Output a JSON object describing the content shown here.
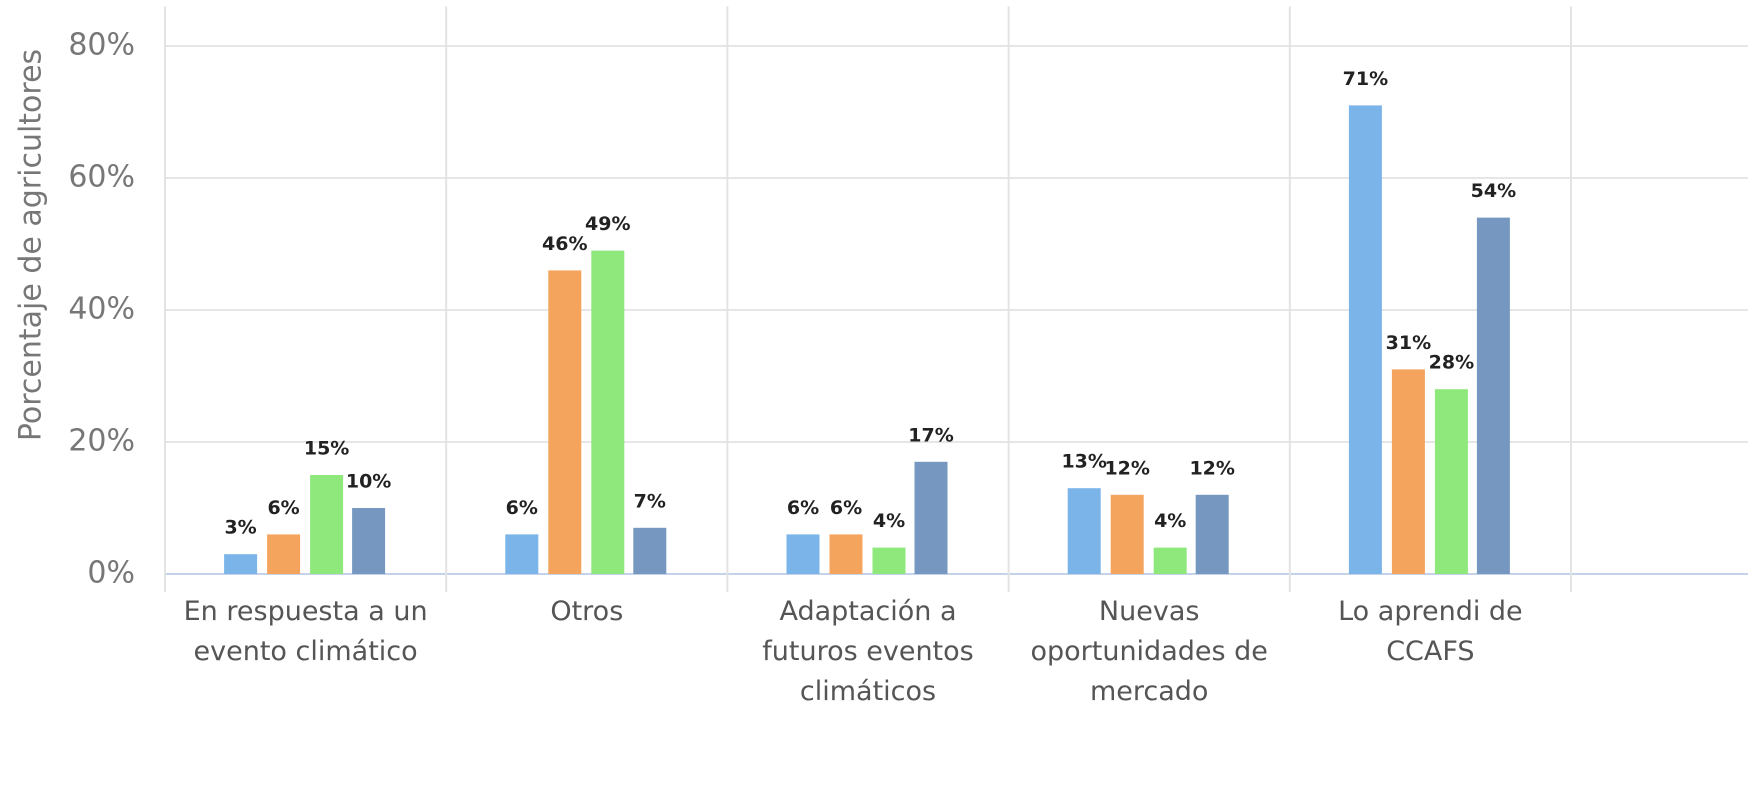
{
  "chart_data": {
    "type": "bar",
    "y_label": "Porcentaje de agricultores",
    "categories": [
      "En respuesta a un evento climático",
      "Otros",
      "Adaptación a futuros eventos climáticos",
      "Nuevas oportunidades de mercado",
      "Lo aprendi de CCAFS"
    ],
    "series": [
      {
        "color": "#7ab4e8",
        "values": [
          3,
          6,
          6,
          13,
          71
        ],
        "value_labels": [
          "3%",
          "6%",
          "6%",
          "13%",
          "71%"
        ]
      },
      {
        "color": "#f5a45d",
        "values": [
          6,
          46,
          6,
          12,
          31
        ],
        "value_labels": [
          "6%",
          "46%",
          "6%",
          "12%",
          "31%"
        ]
      },
      {
        "color": "#8ee87c",
        "values": [
          15,
          49,
          4,
          4,
          28
        ],
        "value_labels": [
          "15%",
          "49%",
          "4%",
          "4%",
          "28%"
        ]
      },
      {
        "color": "#7698c0",
        "values": [
          10,
          7,
          17,
          12,
          54
        ],
        "value_labels": [
          "10%",
          "7%",
          "17%",
          "12%",
          "54%"
        ]
      }
    ],
    "ylim": [
      0,
      86
    ],
    "yticks": [
      {
        "value": 0,
        "label": "0%"
      },
      {
        "value": 20,
        "label": "20%"
      },
      {
        "value": 40,
        "label": "40%"
      },
      {
        "value": 60,
        "label": "60%"
      },
      {
        "value": 80,
        "label": "80%"
      }
    ],
    "grid": true
  }
}
